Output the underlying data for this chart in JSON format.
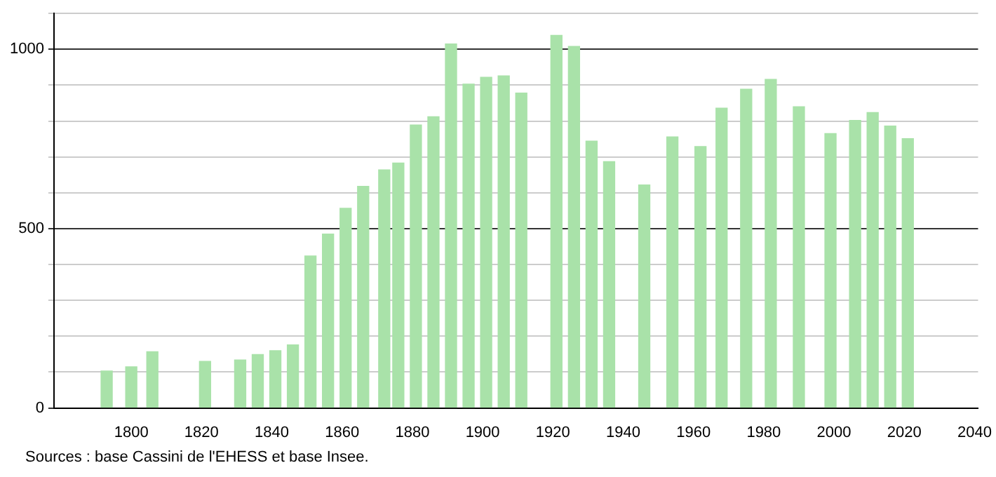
{
  "chart_data": {
    "type": "bar",
    "x": [
      1793,
      1800,
      1806,
      1821,
      1831,
      1836,
      1841,
      1846,
      1851,
      1856,
      1861,
      1866,
      1872,
      1876,
      1881,
      1886,
      1891,
      1896,
      1901,
      1906,
      1911,
      1921,
      1926,
      1931,
      1936,
      1946,
      1954,
      1962,
      1968,
      1975,
      1982,
      1990,
      1999,
      2006,
      2011,
      2016,
      2021
    ],
    "values": [
      103,
      115,
      157,
      130,
      134,
      149,
      160,
      176,
      424,
      485,
      557,
      618,
      664,
      683,
      789,
      812,
      1015,
      903,
      922,
      926,
      878,
      1039,
      1008,
      744,
      687,
      622,
      756,
      729,
      836,
      889,
      916,
      840,
      765,
      802,
      824,
      786,
      751
    ],
    "color": "#a9e2a9",
    "xlim": [
      1778,
      2041
    ],
    "xticks": [
      1800,
      1820,
      1840,
      1860,
      1880,
      1900,
      1920,
      1940,
      1960,
      1980,
      2000,
      2020,
      2040
    ],
    "ylim": [
      0,
      1100
    ],
    "yticks": [
      0,
      {
        "value": 100,
        "label": null
      },
      {
        "value": 200,
        "label": null
      },
      {
        "value": 300,
        "label": null
      },
      {
        "value": 400,
        "label": null
      },
      500,
      {
        "value": 600,
        "label": null
      },
      {
        "value": 700,
        "label": null
      },
      {
        "value": 800,
        "label": null
      },
      {
        "value": 900,
        "label": null
      },
      1000,
      {
        "value": 1100,
        "label": null
      }
    ],
    "grid": "y",
    "annotations": [
      "Sources : base Cassini de l'EHESS et base Insee."
    ]
  }
}
